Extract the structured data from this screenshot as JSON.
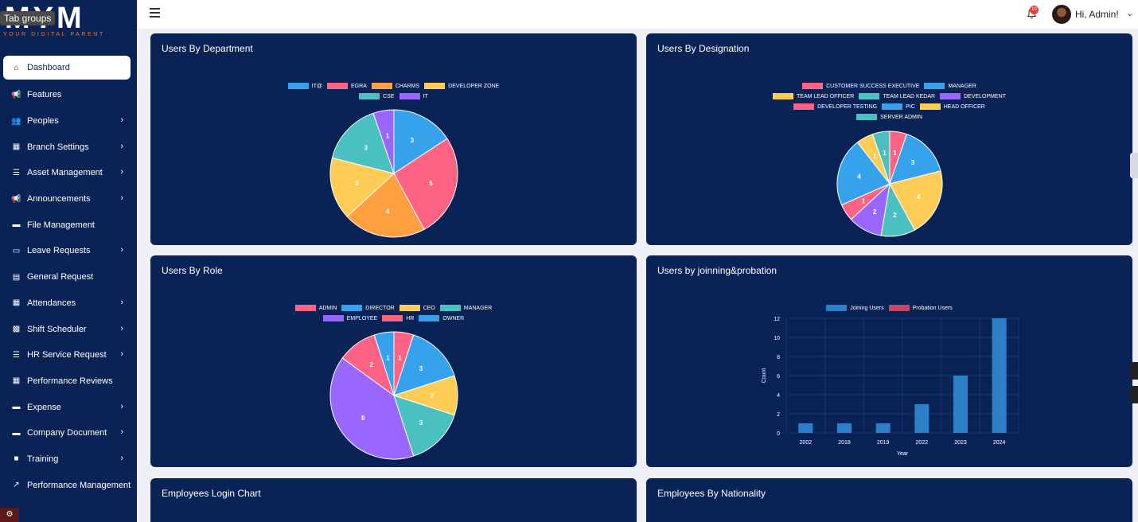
{
  "sidebar": {
    "logo": "MYM",
    "logo_sub": "YOUR DIGITAL PARENT",
    "tooltip": "Tab groups",
    "items": [
      {
        "label": "Dashboard",
        "icon": "home-icon",
        "active": true,
        "chevron": false
      },
      {
        "label": "Features",
        "icon": "megaphone-icon",
        "chevron": false
      },
      {
        "label": "Peoples",
        "icon": "users-icon",
        "chevron": true
      },
      {
        "label": "Branch Settings",
        "icon": "building-icon",
        "chevron": true
      },
      {
        "label": "Asset Management",
        "icon": "list-icon",
        "chevron": true
      },
      {
        "label": "Announcements",
        "icon": "megaphone-icon",
        "chevron": true
      },
      {
        "label": "File Management",
        "icon": "folder-icon",
        "chevron": false
      },
      {
        "label": "Leave Requests",
        "icon": "folder-open-icon",
        "chevron": true
      },
      {
        "label": "General Request",
        "icon": "id-card-icon",
        "chevron": false
      },
      {
        "label": "Attendances",
        "icon": "calendar-icon",
        "chevron": true
      },
      {
        "label": "Shift Scheduler",
        "icon": "calendar-clock-icon",
        "chevron": true
      },
      {
        "label": "HR Service Request",
        "icon": "list-icon",
        "chevron": true
      },
      {
        "label": "Performance Reviews",
        "icon": "qr-icon",
        "chevron": false
      },
      {
        "label": "Expense",
        "icon": "wallet-icon",
        "chevron": true
      },
      {
        "label": "Company Document",
        "icon": "wallet-icon",
        "chevron": true
      },
      {
        "label": "Training",
        "icon": "video-icon",
        "chevron": true
      },
      {
        "label": "Performance Management",
        "icon": "line-chart-icon",
        "chevron": false
      }
    ]
  },
  "header": {
    "greeting": "Hi, Admin!",
    "notification_count": "10"
  },
  "colors": {
    "card_bg": "#0a2356",
    "blue": "#36a2eb",
    "pink": "#ff6384",
    "orange": "#ff9f40",
    "yellow": "#ffcd56",
    "teal": "#4bc0c0",
    "purple": "#9966ff"
  },
  "cards": {
    "department": {
      "title": "Users By Department"
    },
    "designation": {
      "title": "Users By Designation"
    },
    "role": {
      "title": "Users By Role"
    },
    "joining": {
      "title": "Users by joinning&probation"
    },
    "login": {
      "title": "Employees Login Chart"
    },
    "nationality": {
      "title": "Employees By Nationality"
    }
  },
  "chart_data": [
    {
      "type": "pie",
      "title": "Users By Department",
      "labels": [
        "IT@",
        "EGRA",
        "CHARMS",
        "DEVELOPER ZONE",
        "CSE",
        "IT"
      ],
      "values": [
        3,
        5,
        4,
        3,
        3,
        1
      ],
      "colors": [
        "#36a2eb",
        "#ff6384",
        "#ff9f40",
        "#ffcd56",
        "#4bc0c0",
        "#9966ff"
      ],
      "legend_rows": [
        [
          0,
          1,
          2,
          3
        ],
        [
          4,
          5
        ]
      ]
    },
    {
      "type": "pie",
      "title": "Users By Designation",
      "labels": [
        "CUSTOMER SUCCESS EXECUTIVE",
        "MANAGER",
        "TEAM LEAD OFFICER",
        "TEAM LEAD KEDAR",
        "DEVELOPMENT",
        "DEVELOPER TESTING",
        "PIC",
        "HEAD OFFICER",
        "SERVER ADMIN"
      ],
      "values": [
        1,
        3,
        4,
        2,
        2,
        1,
        4,
        1,
        1
      ],
      "colors": [
        "#ff6384",
        "#36a2eb",
        "#ffcd56",
        "#4bc0c0",
        "#9966ff",
        "#ff6384",
        "#36a2eb",
        "#ffcd56",
        "#4bc0c0"
      ],
      "legend_rows": [
        [
          0,
          1
        ],
        [
          2,
          3,
          4
        ],
        [
          5,
          6,
          7
        ],
        [
          8
        ]
      ]
    },
    {
      "type": "pie",
      "title": "Users By Role",
      "labels": [
        "ADMIN",
        "DIRECTOR",
        "CEO",
        "MANAGER",
        "EMPLOYEE",
        "HR",
        "OWNER"
      ],
      "values": [
        1,
        3,
        2,
        3,
        8,
        2,
        1
      ],
      "colors": [
        "#ff6384",
        "#36a2eb",
        "#ffcd56",
        "#4bc0c0",
        "#9966ff",
        "#ff6384",
        "#36a2eb"
      ],
      "legend_rows": [
        [
          0,
          1,
          2,
          3
        ],
        [
          4,
          5,
          6
        ]
      ]
    },
    {
      "type": "bar",
      "title": "Users by joinning&probation",
      "categories": [
        "2002",
        "2018",
        "2019",
        "2022",
        "2023",
        "2024"
      ],
      "series": [
        {
          "name": "Joining Users",
          "values": [
            1,
            1,
            1,
            3,
            6,
            12
          ],
          "color": "#2e7fc9"
        },
        {
          "name": "Probation Users",
          "values": [
            0,
            0,
            0,
            0,
            0,
            0
          ],
          "color": "#c2476a"
        }
      ],
      "xlabel": "Year",
      "ylabel": "Count",
      "ylim": [
        0,
        12
      ],
      "yticks": [
        "0",
        "2",
        "4",
        "6",
        "8",
        "10",
        "12"
      ]
    }
  ]
}
